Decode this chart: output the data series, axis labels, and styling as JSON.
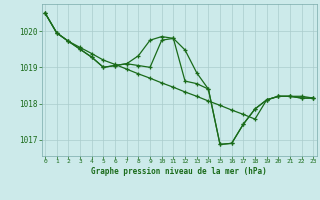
{
  "title": "Graphe pression niveau de la mer (hPa)",
  "background_color": "#cceaea",
  "grid_color": "#aacccc",
  "line_color": "#1a6b1a",
  "xlim": [
    -0.3,
    23.3
  ],
  "ylim": [
    1016.55,
    1020.75
  ],
  "yticks": [
    1017,
    1018,
    1019,
    1020
  ],
  "xticks": [
    0,
    1,
    2,
    3,
    4,
    5,
    6,
    7,
    8,
    9,
    10,
    11,
    12,
    13,
    14,
    15,
    16,
    17,
    18,
    19,
    20,
    21,
    22,
    23
  ],
  "hours": [
    0,
    1,
    2,
    3,
    4,
    5,
    6,
    7,
    8,
    9,
    10,
    11,
    12,
    13,
    14,
    15,
    16,
    17,
    18,
    19,
    20,
    21,
    22,
    23
  ],
  "line1": [
    1020.5,
    1019.95,
    1019.72,
    1019.55,
    1019.38,
    1019.2,
    1019.08,
    1018.95,
    1018.82,
    1018.7,
    1018.57,
    1018.45,
    1018.32,
    1018.2,
    1018.07,
    1017.95,
    1017.82,
    1017.7,
    1017.57,
    1018.1,
    1018.2,
    1018.2,
    1018.2,
    1018.15
  ],
  "line2": [
    1020.5,
    1019.95,
    1019.72,
    1019.5,
    1019.28,
    1019.0,
    1019.05,
    1019.1,
    1019.32,
    1019.75,
    1019.85,
    1019.8,
    1018.62,
    1018.55,
    1018.4,
    1016.87,
    1016.9,
    1017.43,
    1017.85,
    1018.1,
    1018.2,
    1018.2,
    1018.15,
    1018.15
  ],
  "line3": [
    1020.5,
    1019.95,
    1019.72,
    1019.5,
    1019.28,
    1019.0,
    1019.05,
    1019.1,
    1019.05,
    1019.0,
    1019.75,
    1019.8,
    1019.48,
    1018.85,
    1018.4,
    1016.87,
    1016.9,
    1017.43,
    1017.85,
    1018.1,
    1018.2,
    1018.2,
    1018.15,
    1018.15
  ]
}
